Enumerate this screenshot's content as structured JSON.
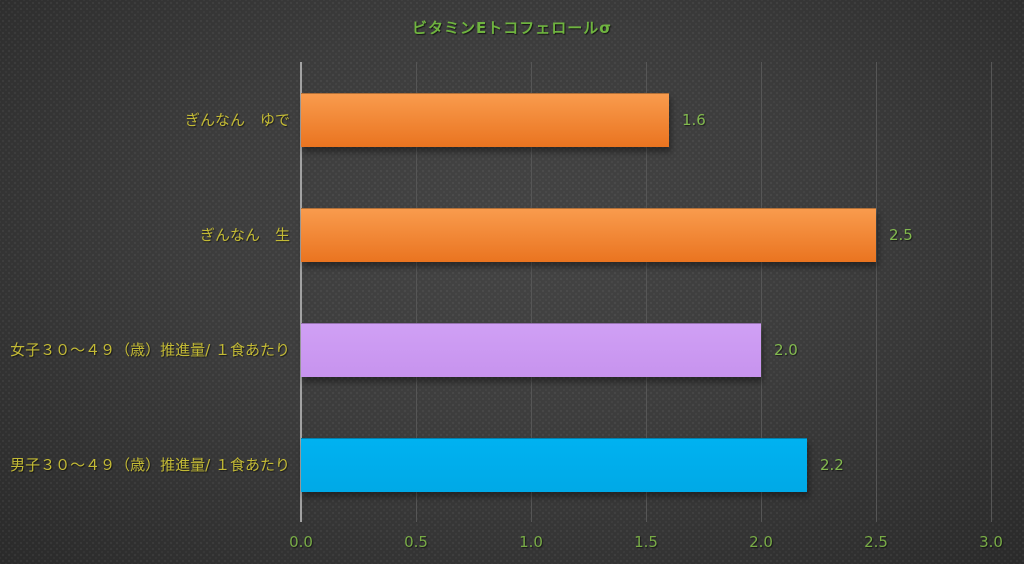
{
  "chart_data": {
    "type": "bar",
    "orientation": "horizontal",
    "title": "ビタミンEトコフェロールσ",
    "categories": [
      "ぎんなん　ゆで",
      "ぎんなん　生",
      "女子３０～４９（歳）推進量/ １食あたり",
      "男子３０～４９（歳）推進量/ １食あたり"
    ],
    "values": [
      1.6,
      2.5,
      2.0,
      2.2
    ],
    "value_labels": [
      "1.6",
      "2.5",
      "2.0",
      "2.2"
    ],
    "bar_gradients": [
      [
        "#f99c4e",
        "#ea7420"
      ],
      [
        "#f99c4e",
        "#ea7420"
      ],
      [
        "#d0a0f5",
        "#c793ee"
      ],
      [
        "#00b2f1",
        "#00a9e6"
      ]
    ],
    "xlim": [
      0,
      3.0
    ],
    "x_ticks": [
      "0.0",
      "0.5",
      "1.0",
      "1.5",
      "2.0",
      "2.5",
      "3.0"
    ],
    "x_tick_values": [
      0,
      0.5,
      1.0,
      1.5,
      2.0,
      2.5,
      3.0
    ],
    "xlabel": "",
    "ylabel": "",
    "legend": null,
    "grid": "vertical-major",
    "colors": {
      "title": "#6fb43f",
      "tick_label": "#78ab46",
      "value_label": "#82b94e",
      "category_label": "#c3ba35",
      "axis_line": "#a3a3a3",
      "gridline": "#565656",
      "background": "#3a3a3a"
    }
  }
}
